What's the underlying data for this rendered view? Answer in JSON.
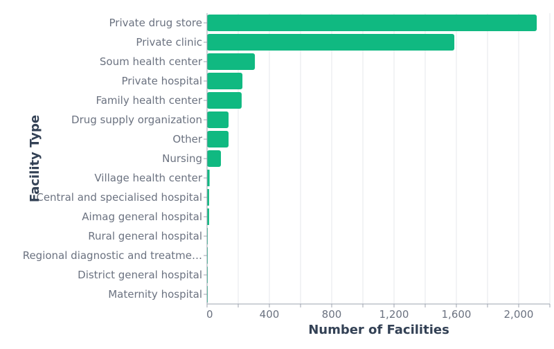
{
  "chart_data": {
    "type": "bar",
    "orientation": "horizontal",
    "title": "",
    "xlabel": "Number of Facilities",
    "ylabel": "Facility Type",
    "xlim": [
      0,
      2200
    ],
    "x_ticks": [
      0,
      400,
      800,
      1200,
      1600,
      2000
    ],
    "x_tick_labels": [
      "0",
      "400",
      "800",
      "1,200",
      "1,600",
      "2,000"
    ],
    "grid": true,
    "bar_color": "#10b981",
    "categories": [
      "Private drug store",
      "Private clinic",
      "Soum health center",
      "Private hospital",
      "Family health center",
      "Drug supply organization",
      "Other",
      "Nursing",
      "Village health center",
      "Central and specialised hospital",
      "Aimag general hospital",
      "Rural general hospital",
      "Regional diagnostic and treatme…",
      "District general hospital",
      "Maternity hospital"
    ],
    "values": [
      2116,
      1587,
      307,
      227,
      222,
      138,
      138,
      89,
      16,
      13,
      13,
      4,
      2,
      2,
      1
    ]
  }
}
